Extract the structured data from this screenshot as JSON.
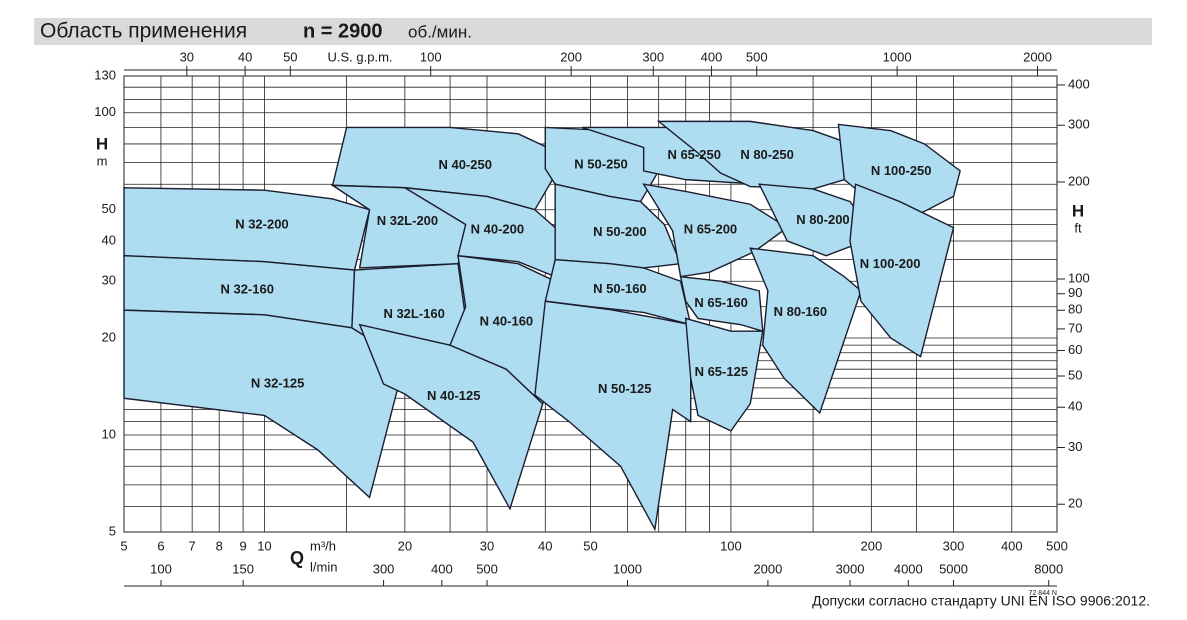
{
  "chart_data": {
    "type": "region",
    "title": "Область применения",
    "speed": "n = 2900",
    "speed_unit": "об./мин.",
    "x_axis": {
      "symbol": "Q",
      "unit": "m³/h",
      "log": true,
      "lim": [
        5,
        500
      ],
      "ticks": [
        5,
        6,
        7,
        8,
        9,
        10,
        20,
        30,
        40,
        50,
        100,
        200,
        300,
        400,
        500
      ],
      "minor": [
        15,
        25,
        60,
        70,
        80,
        90,
        150,
        250
      ]
    },
    "y_axis": {
      "symbol": "H",
      "unit": "m",
      "log": true,
      "lim": [
        5,
        130
      ],
      "ticks": [
        5,
        10,
        20,
        30,
        40,
        50,
        100,
        130
      ],
      "minor": [
        6,
        7,
        8,
        9,
        11,
        12,
        13,
        14,
        15,
        16,
        17,
        18,
        19,
        25,
        35,
        45,
        60,
        70,
        80,
        90,
        110,
        120
      ]
    },
    "top_axis": {
      "unit": "U.S. g.p.m.",
      "lim": [
        22.0,
        2201.5
      ],
      "ticks": [
        30,
        40,
        50,
        100,
        200,
        300,
        400,
        500,
        1000,
        2000
      ]
    },
    "bottom_axis": {
      "unit": "l/min",
      "lim": [
        83.3,
        8333
      ],
      "ticks": [
        100,
        150,
        300,
        400,
        500,
        1000,
        2000,
        3000,
        4000,
        5000,
        8000
      ]
    },
    "right_axis": {
      "symbol": "H",
      "unit": "ft",
      "lim": [
        16.4,
        426.5
      ],
      "ticks": [
        20,
        30,
        40,
        50,
        60,
        70,
        80,
        90,
        100,
        200,
        300,
        400
      ]
    },
    "fill": "#aedcf0",
    "stroke": "#1b1d2e",
    "series": [
      {
        "name": "N 40-250",
        "q": [
          15,
          25,
          35,
          42,
          42.5,
          38,
          30,
          20,
          14
        ],
        "h": [
          90,
          90,
          86,
          76,
          66,
          50,
          55,
          58.5,
          59.5
        ]
      },
      {
        "name": "N 32-200",
        "q": [
          5,
          10,
          14,
          16.8,
          15.6,
          10,
          5
        ],
        "h": [
          58.5,
          57.5,
          54,
          50,
          32.5,
          34.5,
          36
        ]
      },
      {
        "name": "N 32-160",
        "q": [
          5,
          10,
          15.6,
          15.4,
          10,
          5
        ],
        "h": [
          36,
          34.5,
          32.5,
          21.5,
          23.6,
          24.4
        ]
      },
      {
        "name": "N 32-125",
        "q": [
          5,
          10,
          15.4,
          20,
          16.8,
          13,
          10,
          5
        ],
        "h": [
          24.4,
          23.6,
          21.5,
          17,
          6.4,
          9,
          11.5,
          13
        ]
      },
      {
        "name": "N 32L-200",
        "q": [
          14,
          20,
          26,
          27.5,
          26,
          16,
          16.8
        ],
        "h": [
          59.5,
          58.5,
          53,
          42,
          34,
          33,
          50
        ]
      },
      {
        "name": "N 32L-160",
        "q": [
          15.6,
          26,
          27,
          25,
          20,
          15.4
        ],
        "h": [
          32.5,
          34,
          23,
          19,
          17,
          21.5
        ]
      },
      {
        "name": "N 40-125",
        "q": [
          16,
          25,
          33,
          39.5,
          33.6,
          28,
          20,
          18
        ],
        "h": [
          22,
          19,
          16,
          12.5,
          5.9,
          9.5,
          13.4,
          14.4
        ]
      },
      {
        "name": "N 40-160",
        "q": [
          26,
          35,
          42,
          42,
          39.5,
          33,
          25,
          27
        ],
        "h": [
          36,
          34,
          30,
          18,
          12.5,
          16,
          19,
          25
        ]
      },
      {
        "name": "N 40-200",
        "q": [
          20,
          30,
          38,
          42,
          42,
          35,
          26,
          27
        ],
        "h": [
          58.5,
          55,
          50,
          44,
          31,
          34.5,
          36,
          45
        ]
      },
      {
        "name": "N 50-250",
        "q": [
          40,
          55,
          65,
          70,
          64,
          55,
          42,
          40
        ],
        "h": [
          90,
          88,
          82,
          66,
          53,
          55,
          60,
          67
        ]
      },
      {
        "name": "N 50-200",
        "q": [
          42,
          55,
          64,
          72,
          78,
          65,
          55,
          42
        ],
        "h": [
          60,
          55,
          53,
          45,
          34,
          33,
          34,
          35
        ]
      },
      {
        "name": "N 50-160",
        "q": [
          42,
          55,
          65,
          78,
          82,
          65,
          50,
          40
        ],
        "h": [
          35,
          34,
          33,
          30,
          22,
          24,
          25,
          26
        ]
      },
      {
        "name": "N 50-125",
        "q": [
          40,
          55,
          70,
          82,
          82,
          75,
          68.7,
          58,
          45,
          38
        ],
        "h": [
          26,
          24.5,
          23,
          22,
          11,
          12,
          5.1,
          8,
          11,
          13.3
        ]
      },
      {
        "name": "N 65-250",
        "q": [
          48,
          75,
          95,
          115,
          128,
          115,
          80,
          65,
          65
        ],
        "h": [
          90,
          90,
          85,
          78,
          62,
          60,
          62,
          66,
          78
        ]
      },
      {
        "name": "N 65-200",
        "q": [
          65,
          80,
          110,
          132,
          112,
          90,
          78,
          75
        ],
        "h": [
          60,
          57,
          52,
          44,
          37,
          32,
          31,
          43
        ]
      },
      {
        "name": "N 65-160",
        "q": [
          78,
          95,
          115,
          117,
          105,
          85,
          80
        ],
        "h": [
          31,
          30,
          28,
          21,
          22,
          23,
          26
        ]
      },
      {
        "name": "N 65-125",
        "q": [
          80,
          100,
          117,
          110,
          100,
          85,
          82
        ],
        "h": [
          23,
          21,
          21,
          12.5,
          10.3,
          11.5,
          15
        ]
      },
      {
        "name": "N 80-250",
        "q": [
          70,
          110,
          150,
          185,
          175,
          150,
          110,
          95,
          85
        ],
        "h": [
          94,
          94,
          88,
          79,
          62,
          58,
          59,
          65,
          75
        ]
      },
      {
        "name": "N 80-200",
        "q": [
          115,
          150,
          180,
          198,
          185,
          160,
          132
        ],
        "h": [
          60,
          58,
          53,
          44,
          39,
          36,
          40
        ]
      },
      {
        "name": "N 80-160",
        "q": [
          110,
          150,
          175,
          190,
          155,
          130,
          117,
          120
        ],
        "h": [
          38,
          36,
          31,
          28,
          11.7,
          15,
          19,
          28
        ]
      },
      {
        "name": "N 100-250",
        "q": [
          170,
          220,
          260,
          310,
          300,
          250,
          210,
          175
        ],
        "h": [
          92,
          88,
          80,
          66,
          55,
          48,
          50,
          62
        ]
      },
      {
        "name": "N 100-200",
        "q": [
          185,
          230,
          300,
          255,
          220,
          190,
          180
        ],
        "h": [
          60,
          53,
          44,
          17.5,
          20,
          26,
          40
        ]
      }
    ],
    "code": "72 844 N",
    "footnote": "Допуски согласно стандарту UNI EN ISO 9906:2012."
  }
}
